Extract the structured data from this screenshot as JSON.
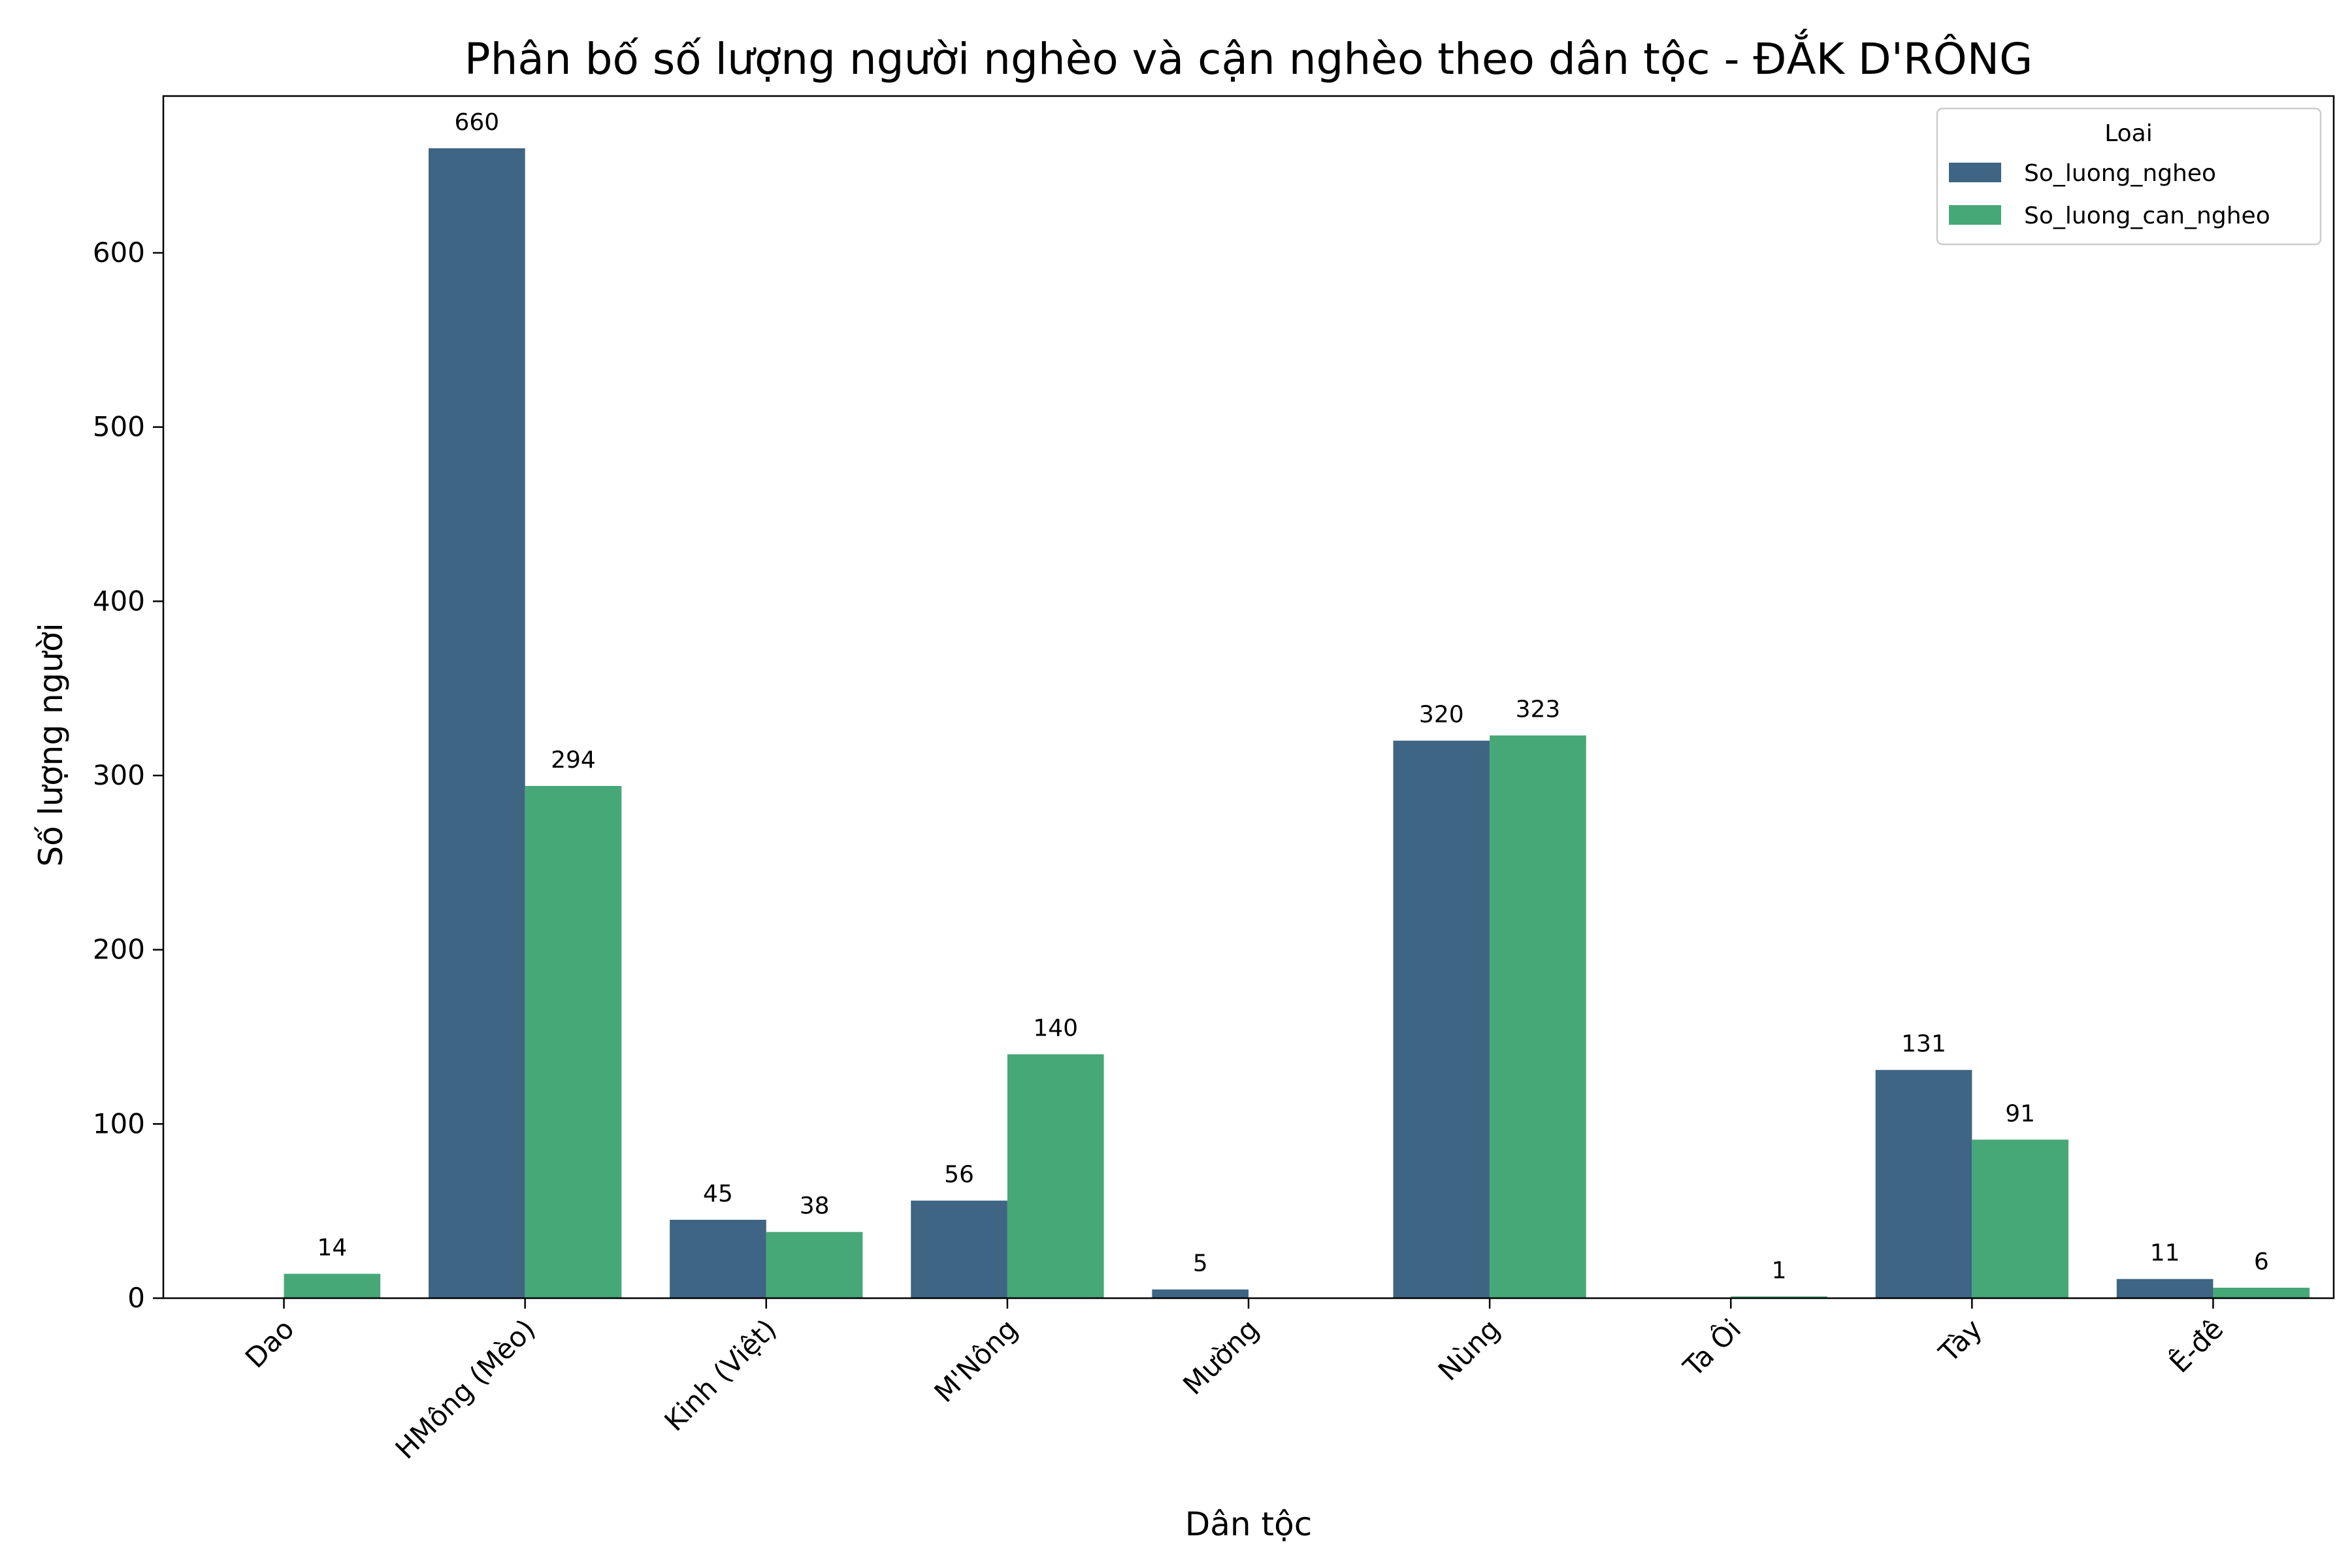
{
  "chart_data": {
    "type": "bar",
    "title": "Phân bố số lượng người nghèo và cận nghèo theo dân tộc - ĐẮK D'RÔNG",
    "xlabel": "Dân tộc",
    "ylabel": "Số lượng người",
    "categories": [
      "Dao",
      "HMông (Mèo)",
      "Kinh (Việt)",
      "M'Nông",
      "Mường",
      "Nùng",
      "Ta Ôi",
      "Tày",
      "Ê-đê"
    ],
    "series": [
      {
        "name": "So_luong_ngheo",
        "color": "#3e6583",
        "values": [
          null,
          660,
          45,
          56,
          5,
          320,
          null,
          131,
          11
        ],
        "labels": [
          "",
          "660",
          "45",
          "56",
          "5",
          "320",
          "",
          "131",
          "11"
        ]
      },
      {
        "name": "So_luong_can_ngheo",
        "color": "#47a877",
        "values": [
          14,
          294,
          38,
          140,
          null,
          323,
          1,
          91,
          6
        ],
        "labels": [
          "14",
          "294",
          "38",
          "140",
          "",
          "323",
          "1",
          "91",
          "6"
        ]
      }
    ],
    "ylim": [
      0,
      690
    ],
    "yticks": [
      0,
      100,
      200,
      300,
      400,
      500,
      600
    ],
    "ytick_labels": [
      "0",
      "100",
      "200",
      "300",
      "400",
      "500",
      "600"
    ],
    "legend": {
      "title": "Loai",
      "position": "top-right"
    },
    "grid": false
  }
}
